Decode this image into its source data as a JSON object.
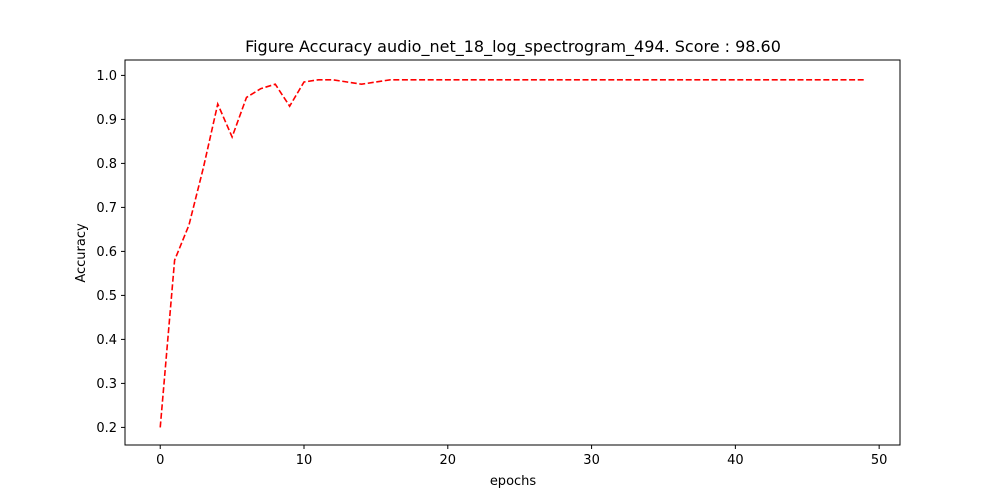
{
  "chart_data": {
    "type": "line",
    "title": "Figure Accuracy audio_net_18_log_spectrogram_494. Score : 98.60",
    "xlabel": "epochs",
    "ylabel": "Accuracy",
    "xlim": [
      -2.45,
      51.45
    ],
    "ylim": [
      0.16,
      1.035
    ],
    "xticks": [
      0,
      10,
      20,
      30,
      40,
      50
    ],
    "yticks": [
      0.2,
      0.3,
      0.4,
      0.5,
      0.6,
      0.7,
      0.8,
      0.9,
      1.0
    ],
    "grid": false,
    "series": [
      {
        "color": "#ff0000",
        "linestyle": "dashed",
        "x": [
          0,
          1,
          2,
          3,
          4,
          5,
          6,
          7,
          8,
          9,
          10,
          11,
          12,
          13,
          14,
          15,
          16,
          17,
          18,
          19,
          20,
          21,
          22,
          23,
          24,
          25,
          26,
          27,
          28,
          29,
          30,
          31,
          32,
          33,
          34,
          35,
          36,
          37,
          38,
          39,
          40,
          41,
          42,
          43,
          44,
          45,
          46,
          47,
          48,
          49
        ],
        "values": [
          0.2,
          0.58,
          0.66,
          0.79,
          0.935,
          0.86,
          0.95,
          0.97,
          0.98,
          0.93,
          0.985,
          0.99,
          0.99,
          0.985,
          0.98,
          0.985,
          0.99,
          0.99,
          0.99,
          0.99,
          0.99,
          0.99,
          0.99,
          0.99,
          0.99,
          0.99,
          0.99,
          0.99,
          0.99,
          0.99,
          0.99,
          0.99,
          0.99,
          0.99,
          0.99,
          0.99,
          0.99,
          0.99,
          0.99,
          0.99,
          0.99,
          0.99,
          0.99,
          0.99,
          0.99,
          0.99,
          0.99,
          0.99,
          0.99,
          0.99
        ]
      }
    ]
  }
}
